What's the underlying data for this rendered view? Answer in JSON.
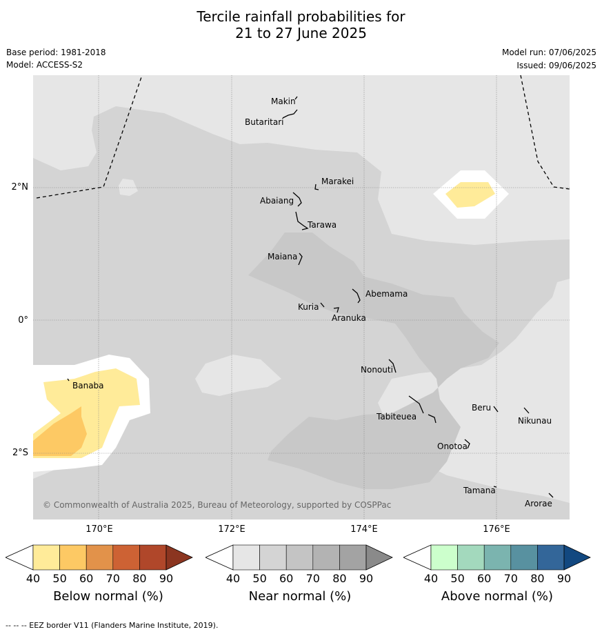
{
  "title": {
    "line1": "Tercile rainfall probabilities for",
    "line2": "21 to 27 June 2025"
  },
  "meta": {
    "base_period": "Base period: 1981-2018",
    "model": "Model: ACCESS-S2",
    "model_run": "Model run: 07/06/2025",
    "issued": "Issued: 09/06/2025"
  },
  "map": {
    "lon_range": [
      169,
      177.1
    ],
    "lat_range": [
      -3,
      3.7
    ],
    "lat_labels": [
      "2°N",
      "0°",
      "2°S"
    ],
    "lon_labels_bottom": [
      "170°E",
      "176°E"
    ],
    "lon_labels_top": [
      "172°E",
      "174°E"
    ],
    "copyright": "© Commonwealth of Australia 2025, Bureau of Meteorology, supported by COSPPac",
    "places": [
      {
        "name": "Makin"
      },
      {
        "name": "Butaritari"
      },
      {
        "name": "Marakei"
      },
      {
        "name": "Abaiang"
      },
      {
        "name": "Tarawa"
      },
      {
        "name": "Maiana"
      },
      {
        "name": "Abemama"
      },
      {
        "name": "Kuria"
      },
      {
        "name": "Aranuka"
      },
      {
        "name": "Nonouti"
      },
      {
        "name": "Banaba"
      },
      {
        "name": "Beru"
      },
      {
        "name": "Tabiteuea"
      },
      {
        "name": "Nikunau"
      },
      {
        "name": "Onotoa"
      },
      {
        "name": "Tamana"
      },
      {
        "name": "Arorae"
      }
    ]
  },
  "colorbars": [
    {
      "title": "Below normal (%)",
      "ticks": [
        "40",
        "50",
        "60",
        "70",
        "80",
        "90"
      ],
      "colors": [
        "#ffffff",
        "#ffeb99",
        "#fdc964",
        "#e2924a",
        "#cd6234",
        "#b0472a",
        "#8b3520"
      ]
    },
    {
      "title": "Near normal (%)",
      "ticks": [
        "40",
        "50",
        "60",
        "70",
        "80",
        "90"
      ],
      "colors": [
        "#ffffff",
        "#e6e6e6",
        "#d4d4d4",
        "#c4c4c4",
        "#b3b3b3",
        "#a3a3a3",
        "#8a8a8a"
      ]
    },
    {
      "title": "Above normal (%)",
      "ticks": [
        "40",
        "50",
        "60",
        "70",
        "80",
        "90"
      ],
      "colors": [
        "#ffffff",
        "#ccffcc",
        "#a3d9bd",
        "#7bb4af",
        "#5891a0",
        "#336699",
        "#124880"
      ]
    }
  ],
  "footnote": "--  --  -- EEZ border V11 (Flanders Marine Institute, 2019)."
}
